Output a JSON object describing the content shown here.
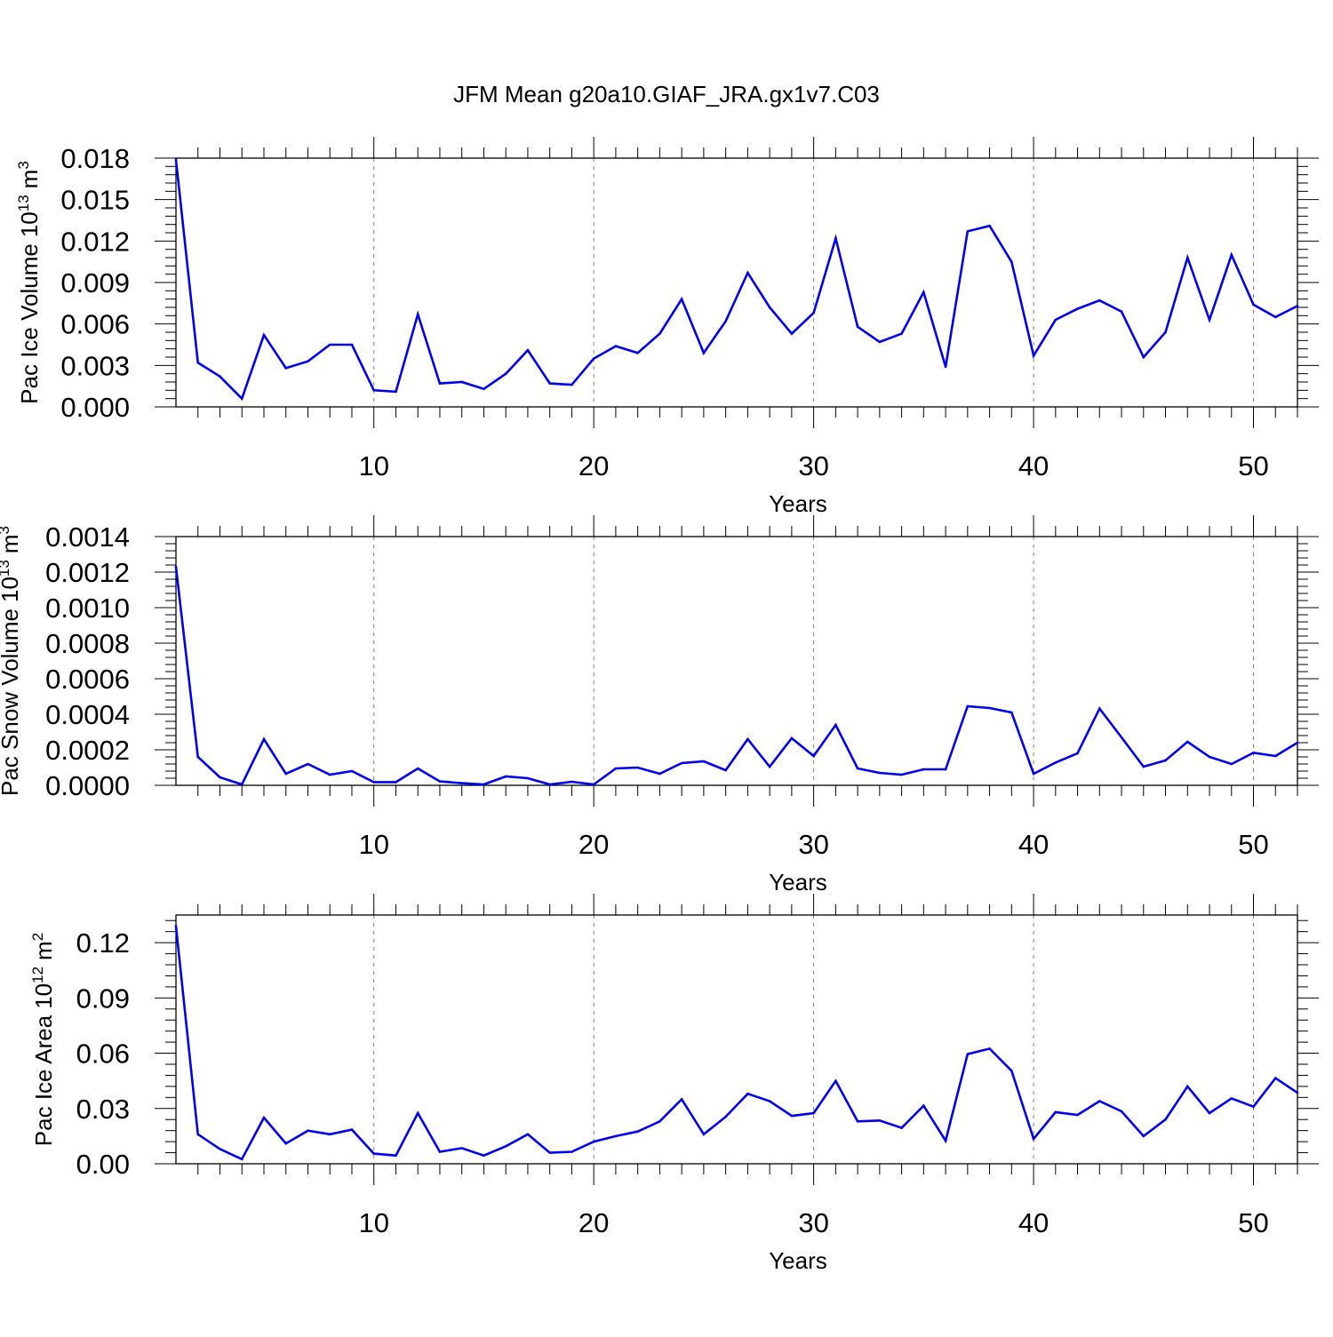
{
  "figure": {
    "title": "JFM Mean g20a10.GIAF_JRA.gx1v7.C03"
  },
  "chart_data": [
    {
      "type": "line",
      "title": "",
      "xlabel": "Years",
      "ylabel": "Pac Ice Volume",
      "ylabel_unit_base": "10",
      "ylabel_unit_exp": "13",
      "ylabel_unit": "m",
      "ylabel_unit_power": "3",
      "xlim": [
        1,
        52
      ],
      "ylim": [
        0,
        0.018
      ],
      "xticks": [
        10,
        20,
        30,
        40,
        50
      ],
      "yticks": [
        "0.000",
        "0.003",
        "0.006",
        "0.009",
        "0.012",
        "0.015",
        "0.018"
      ],
      "grid": "vertical-dashed",
      "series_color": "#0000ee",
      "x": [
        1,
        2,
        3,
        4,
        5,
        6,
        7,
        8,
        9,
        10,
        11,
        12,
        13,
        14,
        15,
        16,
        17,
        18,
        19,
        20,
        21,
        22,
        23,
        24,
        25,
        26,
        27,
        28,
        29,
        30,
        31,
        32,
        33,
        34,
        35,
        36,
        37,
        38,
        39,
        40,
        41,
        42,
        43,
        44,
        45,
        46,
        47,
        48,
        49,
        50,
        51,
        52
      ],
      "values": [
        0.0179,
        0.0032,
        0.0022,
        0.0006,
        0.0052,
        0.0028,
        0.0033,
        0.0045,
        0.0045,
        0.0012,
        0.0011,
        0.0067,
        0.0017,
        0.0018,
        0.0013,
        0.0024,
        0.0041,
        0.0017,
        0.0016,
        0.0035,
        0.0044,
        0.0039,
        0.0053,
        0.0078,
        0.0039,
        0.0062,
        0.0097,
        0.0072,
        0.0053,
        0.0068,
        0.0122,
        0.0058,
        0.0047,
        0.0053,
        0.0083,
        0.0029,
        0.0127,
        0.0131,
        0.0105,
        0.0037,
        0.0063,
        0.0071,
        0.0077,
        0.0069,
        0.0036,
        0.0054,
        0.0108,
        0.0063,
        0.011,
        0.0074,
        0.0065,
        0.0073
      ]
    },
    {
      "type": "line",
      "title": "",
      "xlabel": "Years",
      "ylabel": "Pac Snow Volume",
      "ylabel_unit_base": "10",
      "ylabel_unit_exp": "13",
      "ylabel_unit": "m",
      "ylabel_unit_power": "3",
      "xlim": [
        1,
        52
      ],
      "ylim": [
        0,
        0.0014
      ],
      "xticks": [
        10,
        20,
        30,
        40,
        50
      ],
      "yticks": [
        "0.0000",
        "0.0002",
        "0.0004",
        "0.0006",
        "0.0008",
        "0.0010",
        "0.0012",
        "0.0014"
      ],
      "grid": "vertical-dashed",
      "series_color": "#0000ee",
      "x": [
        1,
        2,
        3,
        4,
        5,
        6,
        7,
        8,
        9,
        10,
        11,
        12,
        13,
        14,
        15,
        16,
        17,
        18,
        19,
        20,
        21,
        22,
        23,
        24,
        25,
        26,
        27,
        28,
        29,
        30,
        31,
        32,
        33,
        34,
        35,
        36,
        37,
        38,
        39,
        40,
        41,
        42,
        43,
        44,
        45,
        46,
        47,
        48,
        49,
        50,
        51,
        52
      ],
      "values": [
        0.00123,
        0.00016,
        4.5e-05,
        5e-06,
        0.00026,
        6.5e-05,
        0.00012,
        6e-05,
        8e-05,
        1.8e-05,
        1.8e-05,
        9.5e-05,
        2.2e-05,
        1.2e-05,
        5e-06,
        5e-05,
        4e-05,
        5e-06,
        2e-05,
        5e-06,
        9.5e-05,
        0.0001,
        6.5e-05,
        0.000125,
        0.000135,
        8.5e-05,
        0.00026,
        0.000105,
        0.000265,
        0.000165,
        0.00034,
        9.5e-05,
        7e-05,
        6e-05,
        9e-05,
        9e-05,
        0.000445,
        0.000435,
        0.00041,
        6.5e-05,
        0.000128,
        0.00018,
        0.000432,
        0.00027,
        0.000105,
        0.00014,
        0.000245,
        0.00016,
        0.00012,
        0.000183,
        0.000165,
        0.00024
      ]
    },
    {
      "type": "line",
      "title": "",
      "xlabel": "Years",
      "ylabel": "Pac Ice Area",
      "ylabel_unit_base": "10",
      "ylabel_unit_exp": "12",
      "ylabel_unit": "m",
      "ylabel_unit_power": "2",
      "xlim": [
        1,
        52
      ],
      "ylim": [
        0,
        0.135
      ],
      "xticks": [
        10,
        20,
        30,
        40,
        50
      ],
      "yticks": [
        "0.00",
        "0.03",
        "0.06",
        "0.09",
        "0.12"
      ],
      "ytick_values": [
        0,
        0.03,
        0.06,
        0.09,
        0.12
      ],
      "grid": "vertical-dashed",
      "series_color": "#0000ee",
      "x": [
        1,
        2,
        3,
        4,
        5,
        6,
        7,
        8,
        9,
        10,
        11,
        12,
        13,
        14,
        15,
        16,
        17,
        18,
        19,
        20,
        21,
        22,
        23,
        24,
        25,
        26,
        27,
        28,
        29,
        30,
        31,
        32,
        33,
        34,
        35,
        36,
        37,
        38,
        39,
        40,
        41,
        42,
        43,
        44,
        45,
        46,
        47,
        48,
        49,
        50,
        51,
        52
      ],
      "values": [
        0.129,
        0.016,
        0.008,
        0.0025,
        0.025,
        0.011,
        0.018,
        0.016,
        0.0185,
        0.0055,
        0.0045,
        0.0275,
        0.0065,
        0.0085,
        0.0045,
        0.0095,
        0.016,
        0.006,
        0.0065,
        0.012,
        0.015,
        0.0175,
        0.023,
        0.035,
        0.016,
        0.0255,
        0.038,
        0.034,
        0.026,
        0.0275,
        0.045,
        0.023,
        0.0235,
        0.0195,
        0.0315,
        0.0125,
        0.0595,
        0.0625,
        0.0505,
        0.0135,
        0.028,
        0.0265,
        0.034,
        0.0285,
        0.015,
        0.024,
        0.042,
        0.0275,
        0.0355,
        0.031,
        0.0465,
        0.0385
      ]
    }
  ]
}
